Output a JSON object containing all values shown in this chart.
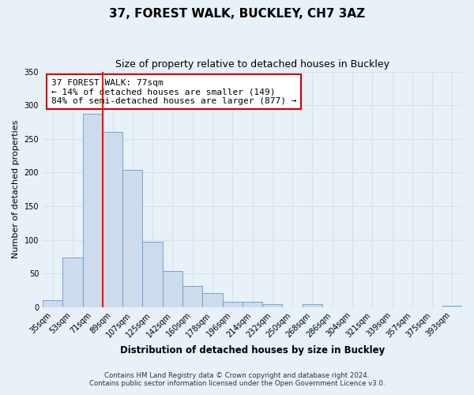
{
  "title": "37, FOREST WALK, BUCKLEY, CH7 3AZ",
  "subtitle": "Size of property relative to detached houses in Buckley",
  "xlabel": "Distribution of detached houses by size in Buckley",
  "ylabel": "Number of detached properties",
  "bin_labels": [
    "35sqm",
    "53sqm",
    "71sqm",
    "89sqm",
    "107sqm",
    "125sqm",
    "142sqm",
    "160sqm",
    "178sqm",
    "196sqm",
    "214sqm",
    "232sqm",
    "250sqm",
    "268sqm",
    "286sqm",
    "304sqm",
    "321sqm",
    "339sqm",
    "357sqm",
    "375sqm",
    "393sqm"
  ],
  "bar_heights": [
    10,
    74,
    287,
    260,
    204,
    97,
    54,
    31,
    21,
    8,
    8,
    5,
    0,
    5,
    0,
    0,
    0,
    0,
    0,
    0,
    2
  ],
  "bar_color": "#ccdcec",
  "bar_edge_color": "#6699cc",
  "red_line_x": 2.5,
  "ylim": [
    0,
    350
  ],
  "yticks": [
    0,
    50,
    100,
    150,
    200,
    250,
    300,
    350
  ],
  "annotation_title": "37 FOREST WALK: 77sqm",
  "annotation_line1": "← 14% of detached houses are smaller (149)",
  "annotation_line2": "84% of semi-detached houses are larger (877) →",
  "annotation_box_color": "#ffffff",
  "annotation_box_edge": "#cc0000",
  "footer1": "Contains HM Land Registry data © Crown copyright and database right 2024.",
  "footer2": "Contains public sector information licensed under the Open Government Licence v3.0.",
  "grid_color": "#d0e4f0",
  "fig_background": "#e8f0f8",
  "plot_background": "#e8f0f8"
}
